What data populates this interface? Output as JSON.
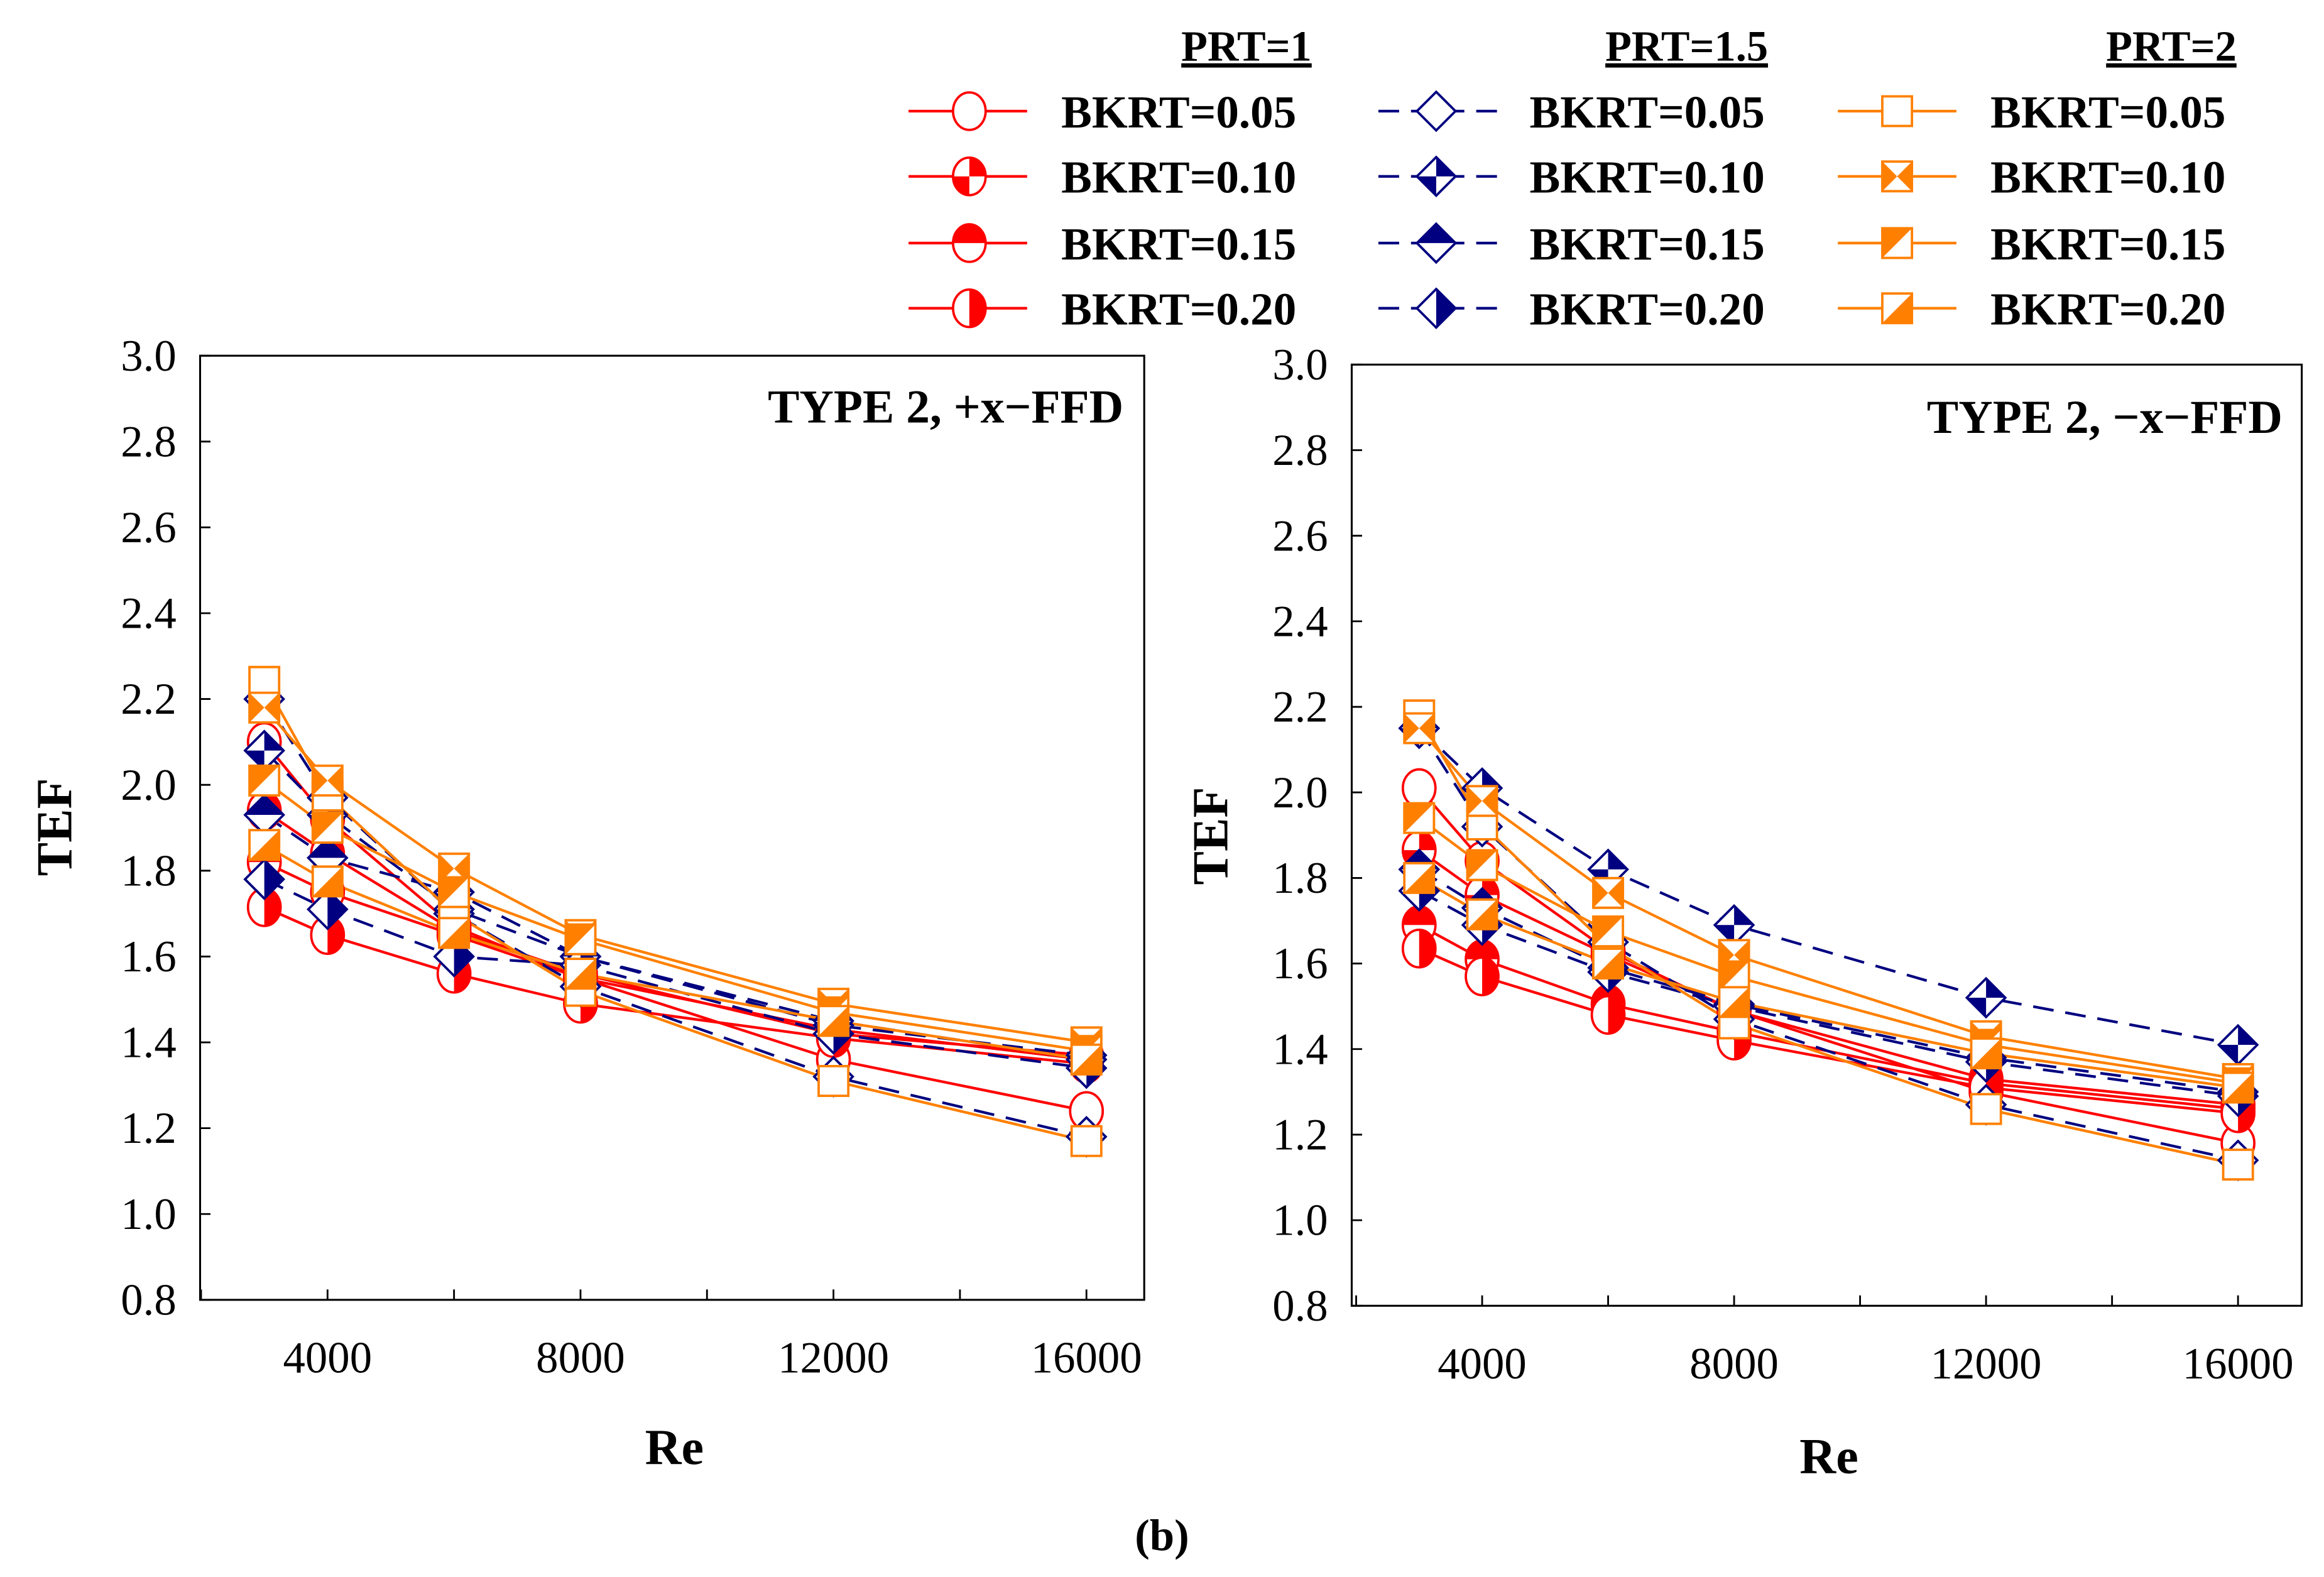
{
  "caption": "(b)",
  "colors": {
    "prt1": "#ff0000",
    "prt15": "#000080",
    "prt2": "#ff8000"
  },
  "legend": {
    "headers": [
      "PRT=1",
      "PRT=1.5",
      "PRT=2"
    ],
    "labels": [
      "BKRT=0.05",
      "BKRT=0.10",
      "BKRT=0.15",
      "BKRT=0.20"
    ]
  },
  "chart_data": [
    {
      "type": "line",
      "title": "TYPE 2, +x−FFD",
      "xlabel": "Re",
      "ylabel": "TEF",
      "ylim": [
        0.8,
        3.0
      ],
      "yticks": [
        "0.8",
        "1.0",
        "1.2",
        "1.4",
        "1.6",
        "1.8",
        "2.0",
        "2.2",
        "2.4",
        "2.6",
        "2.8",
        "3.0"
      ],
      "xticks": [
        "4000",
        "8000",
        "12000",
        "16000"
      ],
      "x": [
        3000,
        4000,
        6000,
        8000,
        12000,
        16000
      ],
      "series": [
        {
          "name": "PRT=1, BKRT=0.05",
          "prt": "prt1",
          "bkrt": 0,
          "values": [
            2.1,
            1.92,
            1.67,
            1.55,
            1.36,
            1.24
          ]
        },
        {
          "name": "PRT=1, BKRT=0.10",
          "prt": "prt1",
          "bkrt": 1,
          "values": [
            1.94,
            1.84,
            1.66,
            1.56,
            1.42,
            1.37
          ]
        },
        {
          "name": "PRT=1, BKRT=0.15",
          "prt": "prt1",
          "bkrt": 2,
          "values": [
            1.82,
            1.75,
            1.65,
            1.55,
            1.43,
            1.36
          ]
        },
        {
          "name": "PRT=1, BKRT=0.20",
          "prt": "prt1",
          "bkrt": 3,
          "values": [
            1.715,
            1.65,
            1.56,
            1.49,
            1.41,
            1.35
          ]
        },
        {
          "name": "PRT=1.5, BKRT=0.05",
          "prt": "prt15",
          "bkrt": 0,
          "values": [
            2.2,
            1.97,
            1.7,
            1.53,
            1.32,
            1.18
          ]
        },
        {
          "name": "PRT=1.5, BKRT=0.10",
          "prt": "prt15",
          "bkrt": 1,
          "values": [
            2.08,
            1.93,
            1.71,
            1.6,
            1.44,
            1.37
          ]
        },
        {
          "name": "PRT=1.5, BKRT=0.15",
          "prt": "prt15",
          "bkrt": 2,
          "values": [
            1.93,
            1.83,
            1.75,
            1.6,
            1.45,
            1.36
          ]
        },
        {
          "name": "PRT=1.5, BKRT=0.20",
          "prt": "prt15",
          "bkrt": 3,
          "values": [
            1.78,
            1.71,
            1.6,
            1.58,
            1.42,
            1.34
          ]
        },
        {
          "name": "PRT=2, BKRT=0.05",
          "prt": "prt2",
          "bkrt": 0,
          "values": [
            2.24,
            1.975,
            1.7,
            1.52,
            1.31,
            1.17
          ]
        },
        {
          "name": "PRT=2, BKRT=0.10",
          "prt": "prt2",
          "bkrt": 1,
          "values": [
            2.18,
            2.01,
            1.805,
            1.65,
            1.49,
            1.4
          ]
        },
        {
          "name": "PRT=2, BKRT=0.15",
          "prt": "prt2",
          "bkrt": 2,
          "values": [
            2.01,
            1.9,
            1.75,
            1.64,
            1.47,
            1.38
          ]
        },
        {
          "name": "PRT=2, BKRT=0.20",
          "prt": "prt2",
          "bkrt": 3,
          "values": [
            1.86,
            1.775,
            1.655,
            1.56,
            1.45,
            1.36
          ]
        }
      ]
    },
    {
      "type": "line",
      "title": "TYPE 2, −x−FFD",
      "xlabel": "Re",
      "ylabel": "TEF",
      "ylim": [
        0.8,
        3.0
      ],
      "yticks": [
        "0.8",
        "1.0",
        "1.2",
        "1.4",
        "1.6",
        "1.8",
        "2.0",
        "2.2",
        "2.4",
        "2.6",
        "2.8",
        "3.0"
      ],
      "xticks": [
        "4000",
        "8000",
        "12000",
        "16000"
      ],
      "x": [
        3000,
        4000,
        6000,
        8000,
        12000,
        16000
      ],
      "series": [
        {
          "name": "PRT=1, BKRT=0.05",
          "prt": "prt1",
          "bkrt": 0,
          "values": [
            2.01,
            1.84,
            1.63,
            1.49,
            1.3,
            1.18
          ]
        },
        {
          "name": "PRT=1, BKRT=0.10",
          "prt": "prt1",
          "bkrt": 1,
          "values": [
            1.865,
            1.76,
            1.62,
            1.49,
            1.33,
            1.27
          ]
        },
        {
          "name": "PRT=1, BKRT=0.15",
          "prt": "prt1",
          "bkrt": 2,
          "values": [
            1.69,
            1.61,
            1.505,
            1.44,
            1.32,
            1.26
          ]
        },
        {
          "name": "PRT=1, BKRT=0.20",
          "prt": "prt1",
          "bkrt": 3,
          "values": [
            1.635,
            1.57,
            1.48,
            1.42,
            1.31,
            1.25
          ]
        },
        {
          "name": "PRT=1.5, BKRT=0.05",
          "prt": "prt15",
          "bkrt": 0,
          "values": [
            2.15,
            1.92,
            1.65,
            1.47,
            1.27,
            1.14
          ]
        },
        {
          "name": "PRT=1.5, BKRT=0.10",
          "prt": "prt15",
          "bkrt": 1,
          "values": [
            2.15,
            2.01,
            1.82,
            1.69,
            1.52,
            1.41
          ]
        },
        {
          "name": "PRT=1.5, BKRT=0.15",
          "prt": "prt15",
          "bkrt": 2,
          "values": [
            1.82,
            1.73,
            1.59,
            1.505,
            1.38,
            1.3
          ]
        },
        {
          "name": "PRT=1.5, BKRT=0.20",
          "prt": "prt15",
          "bkrt": 3,
          "values": [
            1.77,
            1.69,
            1.58,
            1.5,
            1.37,
            1.29
          ]
        },
        {
          "name": "PRT=2, BKRT=0.05",
          "prt": "prt2",
          "bkrt": 0,
          "values": [
            2.18,
            1.925,
            1.64,
            1.46,
            1.26,
            1.13
          ]
        },
        {
          "name": "PRT=2, BKRT=0.10",
          "prt": "prt2",
          "bkrt": 1,
          "values": [
            2.15,
            1.98,
            1.765,
            1.62,
            1.43,
            1.33
          ]
        },
        {
          "name": "PRT=2, BKRT=0.15",
          "prt": "prt2",
          "bkrt": 2,
          "values": [
            1.94,
            1.83,
            1.675,
            1.57,
            1.41,
            1.32
          ]
        },
        {
          "name": "PRT=2, BKRT=0.20",
          "prt": "prt2",
          "bkrt": 3,
          "values": [
            1.8,
            1.715,
            1.6,
            1.51,
            1.39,
            1.31
          ]
        }
      ]
    }
  ]
}
